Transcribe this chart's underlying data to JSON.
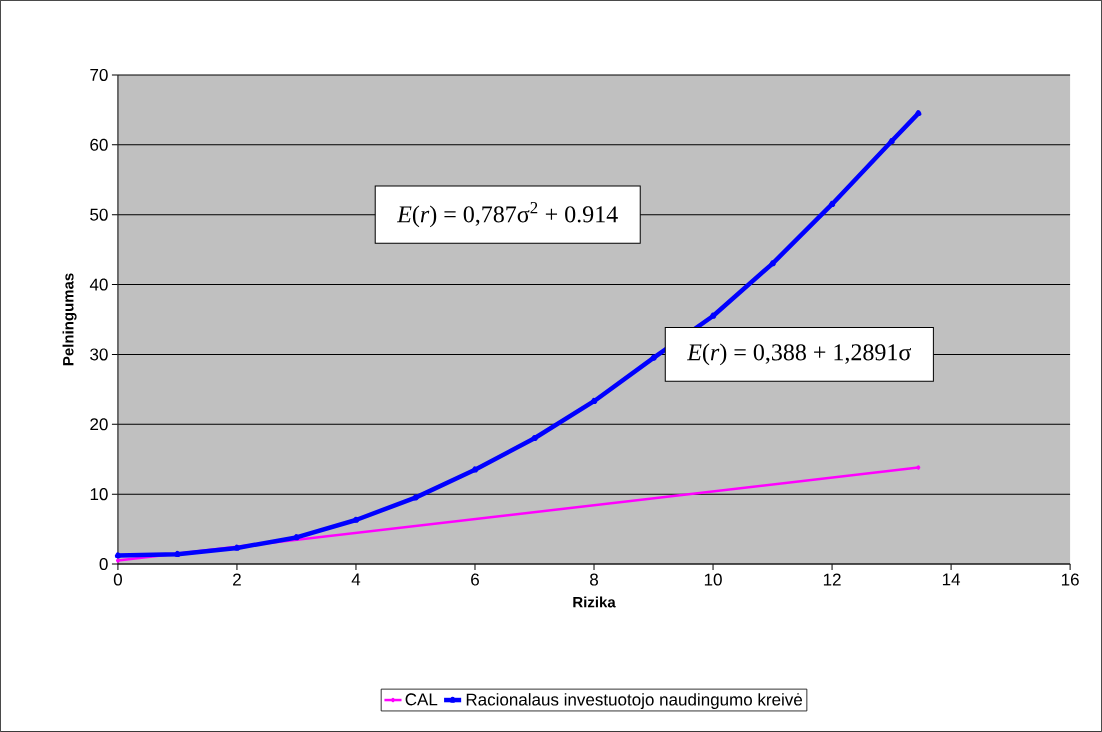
{
  "chart_data": {
    "type": "line",
    "xlabel": "Rizika",
    "ylabel": "Pelningumas",
    "xlim": [
      0,
      16
    ],
    "xticks": [
      0,
      2,
      4,
      6,
      8,
      10,
      12,
      14,
      16
    ],
    "ylim": [
      0,
      70
    ],
    "yticks": [
      0,
      10,
      20,
      30,
      40,
      50,
      60,
      70
    ],
    "grid": "y",
    "legend": "bottom",
    "line_style": "solid",
    "series": [
      {
        "name": "CAL",
        "color": "#ff00ff",
        "marker": "diamond",
        "x": [
          0,
          13.45
        ],
        "values": [
          0.5,
          13.8
        ]
      },
      {
        "name": "Racionalaus investuotojo naudingumo kreivė",
        "color": "#0000ff",
        "marker": "triangle",
        "x": [
          0,
          1,
          2,
          3,
          4,
          5,
          6,
          7,
          8,
          9,
          10,
          11,
          12,
          13,
          13.45
        ],
        "values": [
          1.2,
          1.4,
          2.3,
          3.8,
          6.3,
          9.5,
          13.5,
          18,
          23.3,
          29.5,
          35.5,
          43,
          51.5,
          60.5,
          64.5
        ]
      }
    ],
    "annotations": [
      "*E*(*r*) = 0,787σ$^{2}$ + 0.914",
      "*E*(*r*) = 0,388 + 1,2891σ"
    ]
  }
}
